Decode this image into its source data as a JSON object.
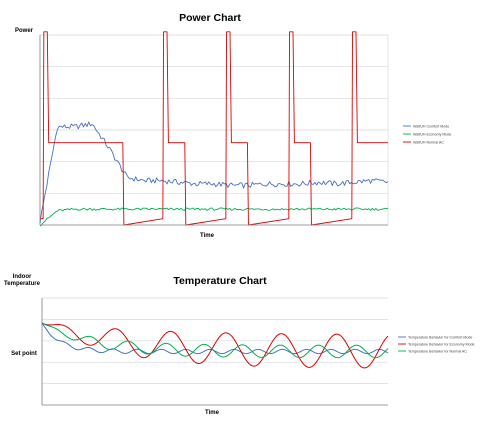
{
  "chart_data": [
    {
      "type": "line",
      "title": "Power Chart",
      "xlabel": "Time",
      "ylabel": "Power",
      "grid": true,
      "legend_position": "right",
      "x": [
        0,
        5,
        10,
        15,
        20,
        25,
        30,
        35,
        40,
        45,
        50,
        55,
        60,
        65,
        70,
        75,
        80,
        85,
        90,
        95,
        100
      ],
      "ylim": [
        0,
        6
      ],
      "series": [
        {
          "name": "WattUH Comfort Mode",
          "color": "#4472c4",
          "values": [
            0.1,
            3.1,
            3.1,
            3.2,
            2.4,
            1.5,
            1.4,
            1.4,
            1.35,
            1.3,
            1.3,
            1.25,
            1.25,
            1.3,
            1.3,
            1.3,
            1.35,
            1.3,
            1.35,
            1.4,
            1.35
          ]
        },
        {
          "name": "WattUH Economy Mode",
          "color": "#00b050",
          "values": [
            0,
            0.45,
            0.5,
            0.5,
            0.5,
            0.5,
            0.5,
            0.5,
            0.5,
            0.5,
            0.5,
            0.5,
            0.5,
            0.5,
            0.5,
            0.5,
            0.5,
            0.5,
            0.5,
            0.5,
            0.5
          ]
        },
        {
          "name": "WattUH Normal AC",
          "color": "#e00000",
          "values": [
            0.2,
            6.1,
            2.6,
            2.6,
            2.6,
            0,
            0,
            0,
            0,
            0,
            0,
            0,
            0,
            0,
            0,
            0,
            0,
            0,
            0,
            0,
            0
          ],
          "pattern": {
            "spike_at": [
              0.9,
              35.3,
              53.4,
              71.5,
              89.6
            ],
            "off_at": [
              23.8,
              41.6,
              59.6,
              77.7
            ],
            "spike_level": 6.1,
            "on_level": 2.6
          }
        }
      ]
    },
    {
      "type": "line",
      "title": "Temperature Chart",
      "xlabel": "Time",
      "ylabel": "Indoor\nTemperature",
      "ylabel_lines": [
        "Indoor",
        "Temperature"
      ],
      "ytick_labels": [
        "Set point"
      ],
      "grid": true,
      "legend_position": "right",
      "x": [
        0,
        10,
        20,
        30,
        40,
        50,
        60,
        70,
        80,
        90,
        100
      ],
      "ylim": [
        -3,
        3
      ],
      "series": [
        {
          "name": "Temperature Behavior for Comfort Mode",
          "color": "#4472c4",
          "values": [
            1.6,
            0.2,
            -0.05,
            0.05,
            0.0,
            0.05,
            -0.05,
            0.05,
            0.0,
            0.0,
            0.05
          ]
        },
        {
          "name": "Temperature Behavior for Economy Mode",
          "color": "#e00000",
          "values": [
            1.6,
            0.7,
            -0.2,
            -0.6,
            0.2,
            0.0,
            -0.3,
            0.6,
            -0.3,
            0.4,
            -0.4
          ]
        },
        {
          "name": "Temperature Behavior for Normal AC",
          "color": "#00b050",
          "values": [
            1.6,
            0.8,
            0.3,
            -0.3,
            0.0,
            -0.1,
            0.2,
            -0.2,
            0.1,
            -0.1,
            0.1
          ]
        }
      ]
    }
  ]
}
